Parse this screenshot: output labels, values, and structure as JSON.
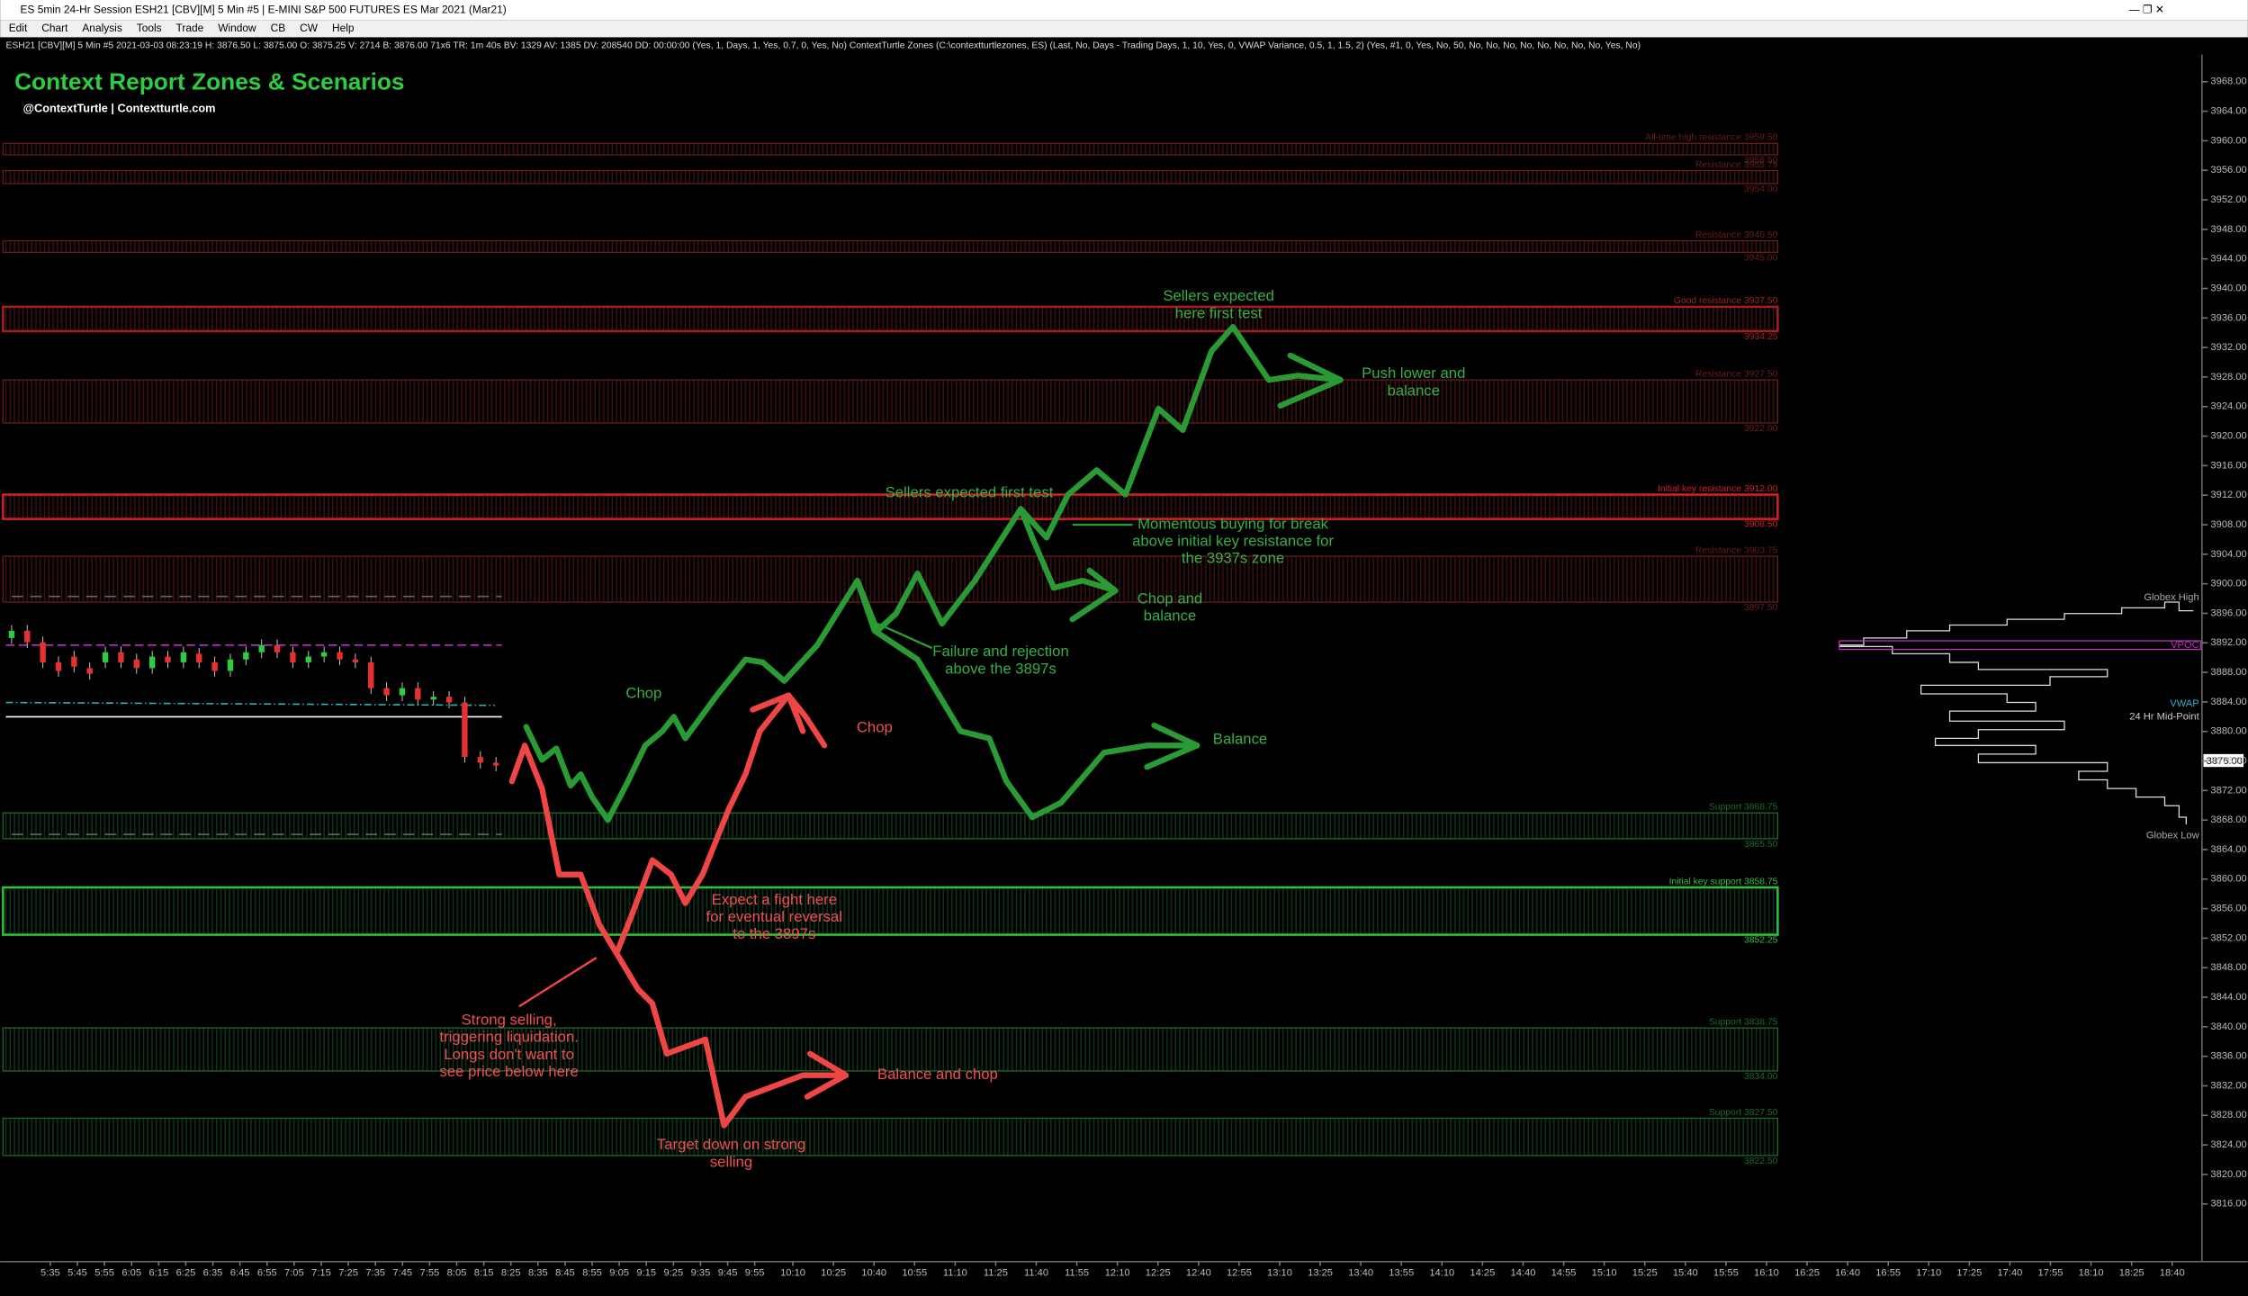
{
  "window": {
    "title": "ES 5min 24-Hr Session ESH21 [CBV][M]  5 Min  #5 | E-MINI S&P 500 FUTURES ES Mar 2021 (Mar21)",
    "menu": [
      "Edit",
      "Chart",
      "Analysis",
      "Tools",
      "Trade",
      "Window",
      "CB",
      "CW",
      "Help"
    ]
  },
  "status_line": "ESH21 [CBV][M]  5 Min  #5   2021-03-03 08:23:19 H: 3876.50 L: 3875.00 O: 3875.25 V: 2714 B: 3876.00 71x6 TR: 1m 40s BV: 1329 AV: 1385 DV: 208540 DD: 00:00:00   (Yes, 1, Days, 1, Yes, 0.7, 0, Yes, No)  ContextTurtle Zones  (C:\\contextturtlezones, ES)   (Last, No, Days - Trading Days, 1, 10, Yes, 0, VWAP Variance, 0.5, 1, 1.5, 2)   (Yes, #1, 0, Yes, No, 50, No, No, No, No, No, No, No, No, Yes, No)",
  "header": {
    "title": "Context Report Zones & Scenarios",
    "subtitle": "@ContextTurtle | Contextturtle.com"
  },
  "zones": [
    {
      "label": "All-time high resistance 3959.50",
      "low": "3958.50"
    },
    {
      "label": "Resistance 3955.75",
      "low": "3954.00"
    },
    {
      "label": "Resistance 3946.50",
      "low": "3945.00"
    },
    {
      "label": "Good resistance 3937.50",
      "low": "3934.25"
    },
    {
      "label": "Resistance 3927.50",
      "low": "3922.00"
    },
    {
      "label": "Initial key resistance 3912.00",
      "low": "3908.50"
    },
    {
      "label": "Resistance 3903.75",
      "low": "3897.50"
    },
    {
      "label": "Support 3868.75",
      "low": "3865.50"
    },
    {
      "label": "Initial key support 3858.75",
      "low": "3852.25"
    },
    {
      "label": "Support 3838.75",
      "low": "3834.00"
    },
    {
      "label": "Support 3827.50",
      "low": "3822.50"
    }
  ],
  "annotations": [
    {
      "lines": [
        "Chop"
      ]
    },
    {
      "lines": [
        "Chop"
      ]
    },
    {
      "lines": [
        "Sellers expected",
        "here first test"
      ]
    },
    {
      "lines": [
        "Push lower and",
        "balance"
      ]
    },
    {
      "lines": [
        "Sellers expected first test"
      ]
    },
    {
      "lines": [
        "Momentous buying for break",
        "above initial key resistance for",
        "the 3937s zone"
      ]
    },
    {
      "lines": [
        "Chop and",
        "balance"
      ]
    },
    {
      "lines": [
        "Failure and rejection",
        "above the 3897s"
      ]
    },
    {
      "lines": [
        "Balance"
      ]
    },
    {
      "lines": [
        "Expect a fight here",
        "for eventual reversal",
        "to the 3897s"
      ]
    },
    {
      "lines": [
        "Strong selling,",
        "triggering liquidation.",
        "Longs don't want to",
        "see price below here"
      ]
    },
    {
      "lines": [
        "Balance and chop"
      ]
    },
    {
      "lines": [
        "Target down on strong",
        "selling"
      ]
    }
  ],
  "profile_labels": [
    "Globex High",
    "VPOC",
    "VWAP",
    "24 Hr Mid-Point",
    "Globex Low"
  ],
  "current_price": "3876.00",
  "price_axis": [
    "3968.00",
    "3964.00",
    "3960.00",
    "3956.00",
    "3952.00",
    "3948.00",
    "3944.00",
    "3940.00",
    "3936.00",
    "3932.00",
    "3928.00",
    "3924.00",
    "3920.00",
    "3916.00",
    "3912.00",
    "3908.00",
    "3904.00",
    "3900.00",
    "3896.00",
    "3892.00",
    "3888.00",
    "3884.00",
    "3880.00",
    "3876.00",
    "3872.00",
    "3868.00",
    "3864.00",
    "3860.00",
    "3856.00",
    "3852.00",
    "3848.00",
    "3844.00",
    "3840.00",
    "3836.00",
    "3832.00",
    "3828.00",
    "3824.00",
    "3820.00",
    "3816.00"
  ],
  "time_axis": [
    "5:35",
    "5:45",
    "5:55",
    "6:05",
    "6:15",
    "6:25",
    "6:35",
    "6:45",
    "6:55",
    "7:05",
    "7:15",
    "7:25",
    "7:35",
    "7:45",
    "7:55",
    "8:05",
    "8:15",
    "8:25",
    "8:35",
    "8:45",
    "8:55",
    "9:05",
    "9:15",
    "9:25",
    "9:35",
    "9:45",
    "9:55",
    "10:10",
    "10:25",
    "10:40",
    "10:55",
    "11:10",
    "11:25",
    "11:40",
    "11:55",
    "12:10",
    "12:25",
    "12:40",
    "12:55",
    "13:10",
    "13:25",
    "13:40",
    "13:55",
    "14:10",
    "14:25",
    "14:40",
    "14:55",
    "15:10",
    "15:25",
    "15:40",
    "15:55",
    "16:10",
    "16:25",
    "16:40",
    "16:55",
    "17:10",
    "17:25",
    "17:40",
    "17:55",
    "18:10",
    "18:25",
    "18:40"
  ]
}
